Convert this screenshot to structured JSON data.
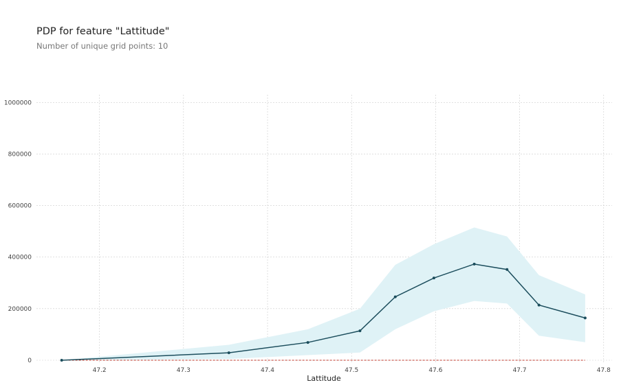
{
  "header": {
    "title": "PDP for feature \"Lattitude\"",
    "subtitle": "Number of unique grid points: 10"
  },
  "colors": {
    "line": "#1b4d5c",
    "band": "#dff2f6",
    "baseline": "#c0392b",
    "grid": "#cccccc"
  },
  "chart_data": {
    "type": "line",
    "title": "PDP for feature \"Lattitude\"",
    "subtitle": "Number of unique grid points: 10",
    "xlabel": "Lattitude",
    "ylabel": "",
    "xlim": [
      47.125,
      47.81
    ],
    "ylim": [
      -8000,
      1030000
    ],
    "xticks": [
      47.2,
      47.3,
      47.4,
      47.5,
      47.6,
      47.7,
      47.8
    ],
    "xtick_labels": [
      "47.2",
      "47.3",
      "47.4",
      "47.5",
      "47.6",
      "47.7",
      "47.8"
    ],
    "yticks": [
      0,
      200000,
      400000,
      600000,
      800000,
      1000000
    ],
    "ytick_labels": [
      "0",
      "200000",
      "400000",
      "600000",
      "800000",
      "1000000"
    ],
    "grid": true,
    "x": [
      47.155,
      47.354,
      47.448,
      47.51,
      47.552,
      47.598,
      47.646,
      47.685,
      47.723,
      47.778
    ],
    "values": [
      0,
      29000,
      69000,
      114000,
      246000,
      319000,
      373000,
      352000,
      214000,
      164000
    ],
    "upper": [
      0,
      60000,
      120000,
      200000,
      370000,
      450000,
      515000,
      480000,
      330000,
      255000
    ],
    "lower": [
      0,
      5000,
      20000,
      30000,
      120000,
      190000,
      230000,
      220000,
      95000,
      70000
    ],
    "baseline": 0
  }
}
